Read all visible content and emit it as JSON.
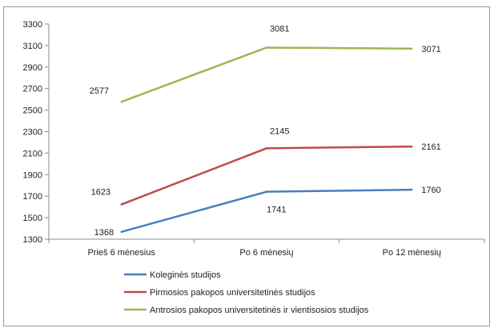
{
  "chart_data": {
    "type": "line",
    "title": "",
    "xlabel": "",
    "ylabel": "",
    "categories": [
      "Prieš 6 mėnesius",
      "Po 6 mėnesių",
      "Po 12 mėnesių"
    ],
    "ylim": [
      1300,
      3300
    ],
    "yticks": [
      1300,
      1500,
      1700,
      1900,
      2100,
      2300,
      2500,
      2700,
      2900,
      3100,
      3300
    ],
    "grid": false,
    "legend_position": "bottom",
    "series": [
      {
        "name": "Koleginės studijos",
        "values": [
          1368,
          1741,
          1760
        ],
        "color": "#4a7ebb"
      },
      {
        "name": "Pirmosios pakopos universitetinės studijos",
        "values": [
          1623,
          2145,
          2161
        ],
        "color": "#be4b48"
      },
      {
        "name": "Antrosios pakopos universitetinės ir vientisosios studijos",
        "values": [
          2577,
          3081,
          3071
        ],
        "color": "#98b954"
      }
    ]
  }
}
